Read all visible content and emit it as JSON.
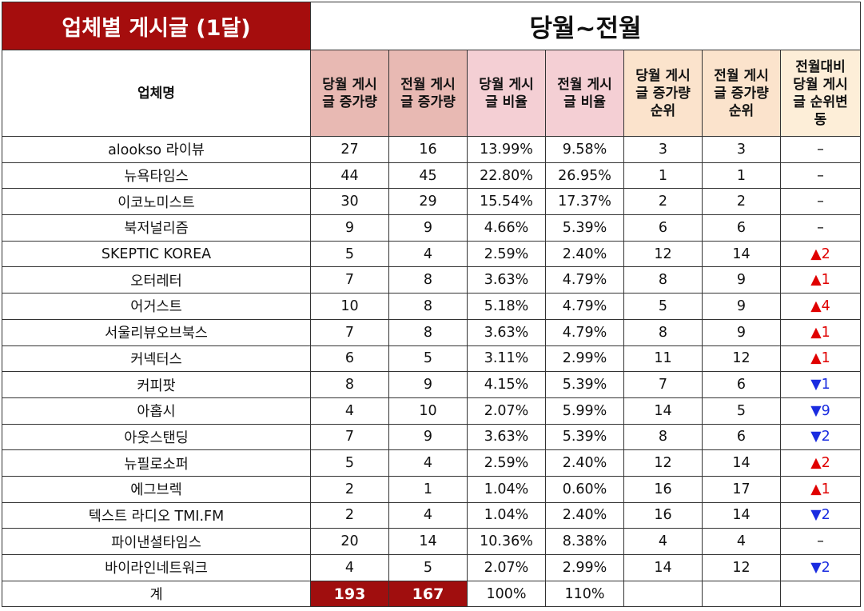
{
  "title": "업체별 게시글 (1달)",
  "range": "당월~전월",
  "headers": {
    "company": "업체명",
    "cur_increase": [
      "당월 게시",
      "글 증가량"
    ],
    "prev_increase": [
      "전월 게시",
      "글 증가량"
    ],
    "cur_ratio": [
      "당월 게시",
      "글 비율"
    ],
    "prev_ratio": [
      "전월 게시",
      "글 비율"
    ],
    "cur_rank": [
      "당월 게시",
      "글 증가량",
      "순위"
    ],
    "prev_rank": [
      "전월 게시",
      "글 증가량",
      "순위"
    ],
    "rank_change": [
      "전월대비",
      "당월 게시",
      "글 순위변",
      "동"
    ]
  },
  "colors": {
    "title_bg": "#a50d0d",
    "header_rose": "#e8b9b3",
    "header_pink": "#f4cfd4",
    "header_peach": "#fbe3cc",
    "up": "#e00000",
    "down": "#1a2ce0"
  },
  "rows": [
    {
      "name": "alookso 라이뷰",
      "cur": "27",
      "prev": "16",
      "cur_ratio": "13.99%",
      "prev_ratio": "9.58%",
      "cur_rank": "3",
      "prev_rank": "3",
      "change": "–",
      "dir": "none"
    },
    {
      "name": "뉴욕타임스",
      "cur": "44",
      "prev": "45",
      "cur_ratio": "22.80%",
      "prev_ratio": "26.95%",
      "cur_rank": "1",
      "prev_rank": "1",
      "change": "–",
      "dir": "none"
    },
    {
      "name": "이코노미스트",
      "cur": "30",
      "prev": "29",
      "cur_ratio": "15.54%",
      "prev_ratio": "17.37%",
      "cur_rank": "2",
      "prev_rank": "2",
      "change": "–",
      "dir": "none"
    },
    {
      "name": "북저널리즘",
      "cur": "9",
      "prev": "9",
      "cur_ratio": "4.66%",
      "prev_ratio": "5.39%",
      "cur_rank": "6",
      "prev_rank": "6",
      "change": "–",
      "dir": "none"
    },
    {
      "name": "SKEPTIC KOREA",
      "cur": "5",
      "prev": "4",
      "cur_ratio": "2.59%",
      "prev_ratio": "2.40%",
      "cur_rank": "12",
      "prev_rank": "14",
      "change": "▲2",
      "dir": "up"
    },
    {
      "name": "오터레터",
      "cur": "7",
      "prev": "8",
      "cur_ratio": "3.63%",
      "prev_ratio": "4.79%",
      "cur_rank": "8",
      "prev_rank": "9",
      "change": "▲1",
      "dir": "up"
    },
    {
      "name": "어거스트",
      "cur": "10",
      "prev": "8",
      "cur_ratio": "5.18%",
      "prev_ratio": "4.79%",
      "cur_rank": "5",
      "prev_rank": "9",
      "change": "▲4",
      "dir": "up"
    },
    {
      "name": "서울리뷰오브북스",
      "cur": "7",
      "prev": "8",
      "cur_ratio": "3.63%",
      "prev_ratio": "4.79%",
      "cur_rank": "8",
      "prev_rank": "9",
      "change": "▲1",
      "dir": "up"
    },
    {
      "name": "커넥터스",
      "cur": "6",
      "prev": "5",
      "cur_ratio": "3.11%",
      "prev_ratio": "2.99%",
      "cur_rank": "11",
      "prev_rank": "12",
      "change": "▲1",
      "dir": "up"
    },
    {
      "name": "커피팟",
      "cur": "8",
      "prev": "9",
      "cur_ratio": "4.15%",
      "prev_ratio": "5.39%",
      "cur_rank": "7",
      "prev_rank": "6",
      "change": "▼1",
      "dir": "down"
    },
    {
      "name": "아홉시",
      "cur": "4",
      "prev": "10",
      "cur_ratio": "2.07%",
      "prev_ratio": "5.99%",
      "cur_rank": "14",
      "prev_rank": "5",
      "change": "▼9",
      "dir": "down"
    },
    {
      "name": "아웃스탠딩",
      "cur": "7",
      "prev": "9",
      "cur_ratio": "3.63%",
      "prev_ratio": "5.39%",
      "cur_rank": "8",
      "prev_rank": "6",
      "change": "▼2",
      "dir": "down"
    },
    {
      "name": "뉴필로소퍼",
      "cur": "5",
      "prev": "4",
      "cur_ratio": "2.59%",
      "prev_ratio": "2.40%",
      "cur_rank": "12",
      "prev_rank": "14",
      "change": "▲2",
      "dir": "up"
    },
    {
      "name": "에그브렉",
      "cur": "2",
      "prev": "1",
      "cur_ratio": "1.04%",
      "prev_ratio": "0.60%",
      "cur_rank": "16",
      "prev_rank": "17",
      "change": "▲1",
      "dir": "up"
    },
    {
      "name": "텍스트 라디오 TMI.FM",
      "cur": "2",
      "prev": "4",
      "cur_ratio": "1.04%",
      "prev_ratio": "2.40%",
      "cur_rank": "16",
      "prev_rank": "14",
      "change": "▼2",
      "dir": "down"
    },
    {
      "name": "파이낸셜타임스",
      "cur": "20",
      "prev": "14",
      "cur_ratio": "10.36%",
      "prev_ratio": "8.38%",
      "cur_rank": "4",
      "prev_rank": "4",
      "change": "–",
      "dir": "none"
    },
    {
      "name": "바이라인네트워크",
      "cur": "4",
      "prev": "5",
      "cur_ratio": "2.07%",
      "prev_ratio": "2.99%",
      "cur_rank": "14",
      "prev_rank": "12",
      "change": "▼2",
      "dir": "down"
    }
  ],
  "total": {
    "label": "계",
    "cur": "193",
    "prev": "167",
    "cur_ratio": "100%",
    "prev_ratio": "110%"
  }
}
